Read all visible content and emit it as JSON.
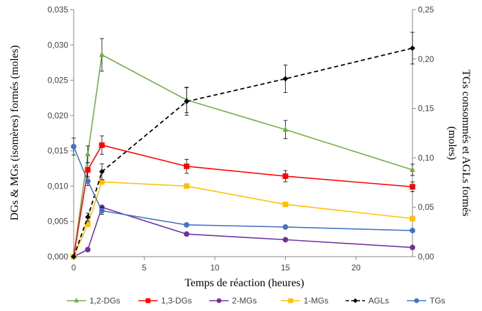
{
  "chart_data": {
    "type": "line",
    "xlabel": "Temps de réaction (heures)",
    "ylabel": "DGs & MGs (isomères) formés (moles)",
    "y2label_line1": "TGs consommés et AGLs formés",
    "y2label_line2": "(moles)",
    "xlim": [
      0,
      24
    ],
    "ylim": [
      0,
      0.035
    ],
    "y2lim": [
      0,
      0.25
    ],
    "xticks": [
      0,
      5,
      10,
      15,
      20
    ],
    "xtick_labels": [
      "0",
      "5",
      "10",
      "15",
      "20"
    ],
    "yticks": [
      0,
      0.005,
      0.01,
      0.015,
      0.02,
      0.025,
      0.03,
      0.035
    ],
    "ytick_labels": [
      "0,000",
      "0,005",
      "0,010",
      "0,015",
      "0,020",
      "0,025",
      "0,030",
      "0,035"
    ],
    "y2ticks": [
      0,
      0.05,
      0.1,
      0.15,
      0.2,
      0.25
    ],
    "y2tick_labels": [
      "0,00",
      "0,05",
      "0,10",
      "0,15",
      "0,20",
      "0,25"
    ],
    "x": [
      0,
      1,
      2,
      8,
      15,
      24
    ],
    "series": [
      {
        "name": "1,2-DGs",
        "axis": "left",
        "color": "#70AD47",
        "marker": "triangle",
        "dash": false,
        "values": [
          0,
          0.0145,
          0.0286,
          0.0222,
          0.018,
          0.0123
        ],
        "errors": [
          0,
          0.0012,
          0.0023,
          0.0018,
          0.0013,
          0.0008
        ]
      },
      {
        "name": "1,3-DGs",
        "axis": "left",
        "color": "#FF0000",
        "marker": "square",
        "dash": false,
        "values": [
          0,
          0.0123,
          0.0158,
          0.0128,
          0.0114,
          0.0099
        ],
        "errors": [
          0,
          0.001,
          0.0013,
          0.001,
          0.0008,
          0.0007
        ]
      },
      {
        "name": "2-MGs",
        "axis": "left",
        "color": "#7030A0",
        "marker": "circle",
        "dash": false,
        "values": [
          0,
          0.001,
          0.007,
          0.0032,
          0.0024,
          0.0013
        ],
        "errors": [
          0,
          0,
          0,
          0,
          0,
          0
        ]
      },
      {
        "name": "1-MGs",
        "axis": "left",
        "color": "#FFC000",
        "marker": "square",
        "dash": false,
        "values": [
          0,
          0.0046,
          0.0106,
          0.01,
          0.0074,
          0.0054
        ],
        "errors": [
          0,
          0,
          0,
          0,
          0,
          0
        ]
      },
      {
        "name": "AGLs",
        "axis": "right",
        "color": "#000000",
        "marker": "diamond",
        "dash": true,
        "values": [
          0,
          0.04,
          0.086,
          0.157,
          0.18,
          0.211
        ],
        "errors": [
          0,
          0.004,
          0.008,
          0.014,
          0.014,
          0.016
        ]
      },
      {
        "name": "TGs",
        "axis": "left",
        "color": "#4472C4",
        "marker": "circle",
        "dash": false,
        "values": [
          0.0156,
          0.0107,
          0.0065,
          0.0045,
          0.0042,
          0.0037
        ],
        "errors": [
          0.0012,
          0.0006,
          0.0005,
          0,
          0,
          0
        ]
      }
    ]
  }
}
